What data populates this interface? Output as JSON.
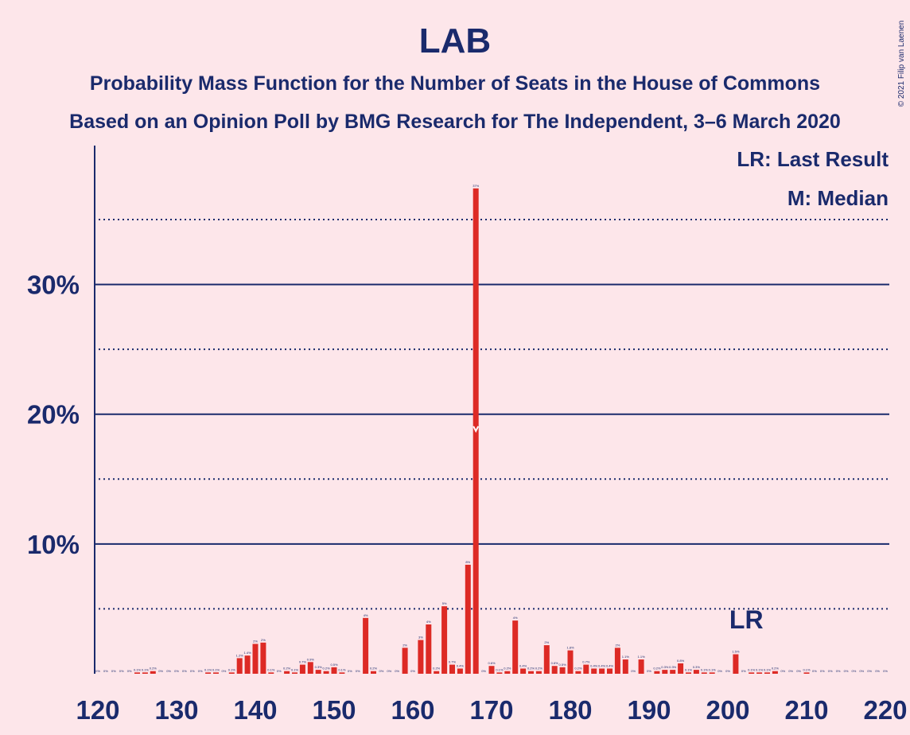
{
  "chart_data": {
    "type": "bar",
    "title": "LAB",
    "subtitle": "Probability Mass Function for the Number of Seats in the House of Commons",
    "subtitle2": "Based on an Opinion Poll by BMG Research for The Independent, 3–6 March 2020",
    "copyright": "© 2021 Filip van Laenen",
    "legend": [
      "LR: Last Result",
      "M: Median"
    ],
    "last_result": 201,
    "last_result_label": "LR",
    "median": 168,
    "color": "#dd2a25",
    "x": [
      120,
      121,
      122,
      123,
      124,
      125,
      126,
      127,
      128,
      129,
      130,
      131,
      132,
      133,
      134,
      135,
      136,
      137,
      138,
      139,
      140,
      141,
      142,
      143,
      144,
      145,
      146,
      147,
      148,
      149,
      150,
      151,
      152,
      153,
      154,
      155,
      156,
      157,
      158,
      159,
      160,
      161,
      162,
      163,
      164,
      165,
      166,
      167,
      168,
      169,
      170,
      171,
      172,
      173,
      174,
      175,
      176,
      177,
      178,
      179,
      180,
      181,
      182,
      183,
      184,
      185,
      186,
      187,
      188,
      189,
      190,
      191,
      192,
      193,
      194,
      195,
      196,
      197,
      198,
      199,
      200,
      201,
      202,
      203,
      204,
      205,
      206,
      207,
      208,
      209,
      210,
      211,
      212,
      213,
      214,
      215,
      216,
      217,
      218,
      219,
      220
    ],
    "values": [
      0,
      0,
      0,
      0,
      0,
      0.1,
      0.1,
      0.2,
      0,
      0,
      0,
      0,
      0,
      0,
      0.1,
      0.1,
      0,
      0.1,
      1.2,
      1.4,
      2.3,
      2.4,
      0.1,
      0,
      0.2,
      0.1,
      0.7,
      0.9,
      0.3,
      0.2,
      0.5,
      0.1,
      0,
      0,
      4.3,
      0.2,
      0,
      0,
      0,
      2.0,
      0,
      2.6,
      3.8,
      0.2,
      5.2,
      0.7,
      0.4,
      8.4,
      37.4,
      0,
      0.6,
      0.1,
      0.2,
      4.1,
      0.4,
      0.2,
      0.2,
      2.2,
      0.6,
      0.5,
      1.8,
      0.2,
      0.7,
      0.4,
      0.4,
      0.4,
      2.0,
      1.1,
      0,
      1.1,
      0,
      0.2,
      0.3,
      0.3,
      0.8,
      0.1,
      0.3,
      0.1,
      0.1,
      0,
      0,
      1.5,
      0,
      0.1,
      0.1,
      0.1,
      0.2,
      0,
      0,
      0,
      0.1,
      0,
      0,
      0,
      0,
      0,
      0,
      0,
      0,
      0,
      0
    ],
    "value_labels": [
      "0%",
      "0%",
      "0%",
      "0%",
      "0%",
      "0.1%",
      "0.1%",
      "0.2%",
      "0%",
      "0%",
      "0%",
      "0%",
      "0%",
      "0%",
      "0.1%",
      "0.1%",
      "0%",
      "0.1%",
      "1.2%",
      "1.4%",
      "2%",
      "2%",
      "0.1%",
      "0%",
      "0.2%",
      "0.1%",
      "0.7%",
      "0.9%",
      "0.3%",
      "0.2%",
      "0.5%",
      "0.1%",
      "0%",
      "0%",
      "4%",
      "0.2%",
      "0%",
      "0%",
      "0%",
      "2%",
      "0%",
      "3%",
      "4%",
      "0.2%",
      "5%",
      "0.7%",
      "0.4%",
      "8%",
      "37%",
      "0%",
      "0.6%",
      "0.1%",
      "0.2%",
      "4%",
      "0.4%",
      "0.2%",
      "0.2%",
      "2%",
      "0.6%",
      "0.5%",
      "1.8%",
      "0.2%",
      "0.7%",
      "0.4%",
      "0.4%",
      "0.4%",
      "2%",
      "1.1%",
      "0%",
      "1.1%",
      "0%",
      "0.2%",
      "0.3%",
      "0.3%",
      "0.8%",
      "0.1%",
      "0.3%",
      "0.1%",
      "0.1%",
      "0%",
      "0%",
      "1.5%",
      "0%",
      "0.1%",
      "0.1%",
      "0.1%",
      "0.2%",
      "0%",
      "0%",
      "0%",
      "0.1%",
      "0%",
      "0%",
      "0%",
      "0%",
      "0%",
      "0%",
      "0%",
      "0%",
      "0%",
      "0%"
    ],
    "xlim": [
      120,
      220
    ],
    "xticks": [
      120,
      130,
      140,
      150,
      160,
      170,
      180,
      190,
      200,
      210,
      220
    ],
    "ylim": [
      0,
      40.7
    ],
    "yticks": [
      {
        "value": 10,
        "label": "10%"
      },
      {
        "value": 20,
        "label": "20%"
      },
      {
        "value": 30,
        "label": "30%"
      }
    ],
    "minor_yticks": [
      5,
      15,
      25,
      35
    ]
  }
}
